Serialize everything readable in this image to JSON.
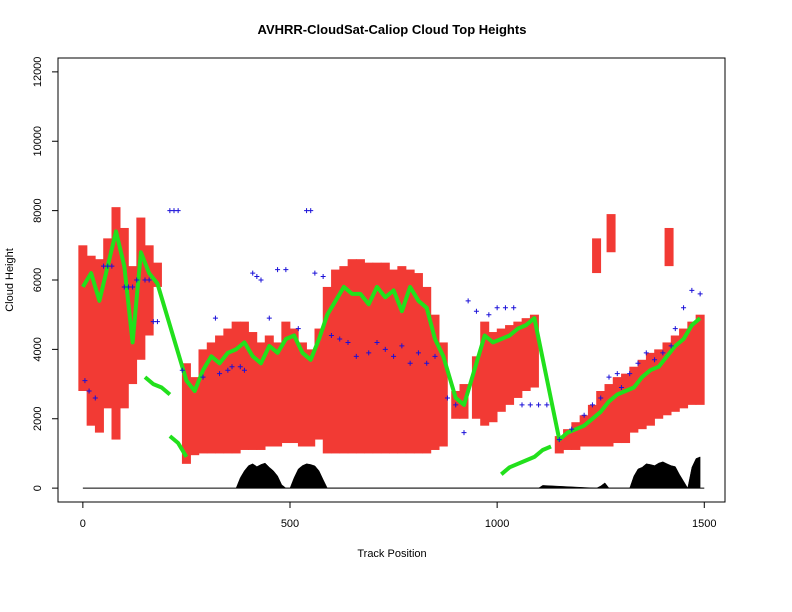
{
  "chart_data": {
    "type": "area",
    "title": "AVHRR-CloudSat-Caliop Cloud Top Heights",
    "xlabel": "Track Position",
    "ylabel": "Cloud Height",
    "xlim": [
      -60,
      1550
    ],
    "ylim": [
      -400,
      12400
    ],
    "x_ticks": [
      0,
      500,
      1000,
      1500
    ],
    "x_tick_labels": [
      "0",
      "500",
      "1000",
      "1500"
    ],
    "y_ticks": [
      0,
      2000,
      4000,
      6000,
      8000,
      10000,
      12000
    ],
    "y_tick_labels": [
      "0",
      "2000",
      "4000",
      "6000",
      "8000",
      "10000",
      "12000"
    ],
    "grid": false,
    "colors": {
      "cloud_layer": "#f23a34",
      "cloud_top": "#22e01c",
      "avhrr": "#1a10d8",
      "terrain": "#000000"
    },
    "series": [
      {
        "type": "vertical-bars",
        "color": "#f23a34",
        "segments": [
          [
            0,
            2800,
            7000
          ],
          [
            20,
            1800,
            6700
          ],
          [
            40,
            1600,
            6600
          ],
          [
            60,
            2300,
            7200
          ],
          [
            80,
            1400,
            8100
          ],
          [
            100,
            2300,
            7500
          ],
          [
            120,
            3000,
            6400
          ],
          [
            140,
            3700,
            7800
          ],
          [
            160,
            4400,
            7000
          ],
          [
            180,
            5800,
            6500
          ],
          [
            250,
            700,
            3600
          ],
          [
            270,
            950,
            3200
          ],
          [
            290,
            1000,
            4000
          ],
          [
            310,
            1000,
            4200
          ],
          [
            330,
            1000,
            4400
          ],
          [
            350,
            1000,
            4600
          ],
          [
            370,
            1000,
            4800
          ],
          [
            390,
            1100,
            4800
          ],
          [
            410,
            1100,
            4500
          ],
          [
            430,
            1100,
            4200
          ],
          [
            450,
            1200,
            4400
          ],
          [
            470,
            1200,
            4200
          ],
          [
            490,
            1300,
            4800
          ],
          [
            510,
            1300,
            4600
          ],
          [
            530,
            1200,
            4200
          ],
          [
            550,
            1200,
            4000
          ],
          [
            570,
            1400,
            4600
          ],
          [
            590,
            1000,
            5800
          ],
          [
            610,
            1000,
            6300
          ],
          [
            630,
            1000,
            6400
          ],
          [
            650,
            1000,
            6600
          ],
          [
            670,
            1000,
            6600
          ],
          [
            690,
            1000,
            6500
          ],
          [
            710,
            1000,
            6500
          ],
          [
            730,
            1000,
            6500
          ],
          [
            750,
            1000,
            6300
          ],
          [
            770,
            1000,
            6400
          ],
          [
            790,
            1000,
            6300
          ],
          [
            810,
            1000,
            6200
          ],
          [
            830,
            1000,
            5800
          ],
          [
            850,
            1100,
            5000
          ],
          [
            870,
            1200,
            4200
          ],
          [
            900,
            2000,
            2800
          ],
          [
            920,
            2000,
            3000
          ],
          [
            950,
            2000,
            3800
          ],
          [
            970,
            1800,
            4800
          ],
          [
            990,
            1900,
            4500
          ],
          [
            1010,
            2200,
            4600
          ],
          [
            1030,
            2400,
            4700
          ],
          [
            1050,
            2600,
            4800
          ],
          [
            1070,
            2800,
            4900
          ],
          [
            1090,
            2900,
            5000
          ],
          [
            1150,
            1000,
            1500
          ],
          [
            1170,
            1100,
            1700
          ],
          [
            1190,
            1100,
            1900
          ],
          [
            1210,
            1200,
            2100
          ],
          [
            1230,
            1200,
            2400
          ],
          [
            1250,
            1200,
            2800
          ],
          [
            1270,
            1200,
            3000
          ],
          [
            1290,
            1300,
            3200
          ],
          [
            1310,
            1300,
            3300
          ],
          [
            1330,
            1600,
            3500
          ],
          [
            1350,
            1700,
            3700
          ],
          [
            1370,
            1800,
            3900
          ],
          [
            1390,
            2000,
            4000
          ],
          [
            1410,
            2100,
            4200
          ],
          [
            1430,
            2200,
            4400
          ],
          [
            1450,
            2300,
            4600
          ],
          [
            1470,
            2400,
            4800
          ],
          [
            1490,
            2400,
            5000
          ],
          [
            1240,
            6200,
            7200
          ],
          [
            1275,
            6800,
            7900
          ],
          [
            1415,
            6400,
            7500
          ]
        ]
      },
      {
        "type": "line",
        "color": "#22e01c",
        "x": [
          0,
          20,
          40,
          60,
          80,
          100,
          120,
          140,
          160,
          180,
          250,
          270,
          290,
          310,
          330,
          350,
          370,
          390,
          410,
          430,
          450,
          470,
          490,
          510,
          530,
          550,
          570,
          590,
          610,
          630,
          650,
          670,
          690,
          710,
          730,
          750,
          770,
          790,
          810,
          830,
          850,
          870,
          900,
          920,
          950,
          970,
          990,
          1010,
          1030,
          1050,
          1070,
          1090,
          1150,
          1170,
          1190,
          1210,
          1230,
          1250,
          1270,
          1290,
          1310,
          1330,
          1350,
          1370,
          1390,
          1410,
          1430,
          1450,
          1470,
          1490
        ],
        "y": [
          5800,
          6200,
          5400,
          6400,
          7400,
          6400,
          4200,
          6800,
          6200,
          5900,
          3100,
          2800,
          3400,
          3800,
          3600,
          3900,
          4000,
          4200,
          3800,
          3600,
          4100,
          3900,
          4300,
          4400,
          3900,
          3700,
          4300,
          5000,
          5400,
          5800,
          5600,
          5600,
          5300,
          5800,
          5500,
          5700,
          5100,
          5800,
          5400,
          5200,
          4300,
          3800,
          2600,
          2400,
          3600,
          4400,
          4200,
          4300,
          4400,
          4600,
          4700,
          4900,
          1400,
          1600,
          1700,
          1800,
          2000,
          2200,
          2500,
          2700,
          2800,
          2900,
          3200,
          3400,
          3500,
          3800,
          4100,
          4300,
          4700,
          4900
        ]
      },
      {
        "type": "line",
        "color": "#22e01c",
        "x": [
          150,
          170,
          190,
          210
        ],
        "y": [
          3200,
          3000,
          2900,
          2700
        ]
      },
      {
        "type": "line",
        "color": "#22e01c",
        "x": [
          210,
          230,
          250
        ],
        "y": [
          1500,
          1300,
          900
        ]
      },
      {
        "type": "line",
        "color": "#22e01c",
        "x": [
          1010,
          1030,
          1050,
          1070,
          1090,
          1110,
          1130
        ],
        "y": [
          400,
          600,
          700,
          800,
          900,
          1100,
          1200
        ]
      },
      {
        "type": "scatter",
        "marker": "+",
        "color": "#1a10d8",
        "x": [
          5,
          15,
          30,
          50,
          60,
          70,
          100,
          110,
          120,
          130,
          150,
          160,
          170,
          180,
          210,
          220,
          230,
          240,
          290,
          320,
          330,
          350,
          360,
          380,
          390,
          410,
          420,
          430,
          450,
          470,
          490,
          520,
          540,
          550,
          560,
          580,
          600,
          620,
          640,
          660,
          690,
          710,
          730,
          750,
          770,
          790,
          810,
          830,
          850,
          880,
          900,
          920,
          930,
          950,
          980,
          1000,
          1020,
          1040,
          1060,
          1080,
          1100,
          1120,
          1150,
          1180,
          1210,
          1230,
          1250,
          1270,
          1290,
          1300,
          1320,
          1340,
          1360,
          1380,
          1400,
          1420,
          1430,
          1450,
          1470,
          1490
        ],
        "y": [
          3100,
          2800,
          2600,
          6400,
          6400,
          6400,
          5800,
          5800,
          5800,
          6000,
          6000,
          6000,
          4800,
          4800,
          8000,
          8000,
          8000,
          3400,
          3200,
          4900,
          3300,
          3400,
          3500,
          3500,
          3400,
          6200,
          6100,
          6000,
          4900,
          6300,
          6300,
          4600,
          8000,
          8000,
          6200,
          6100,
          4400,
          4300,
          4200,
          3800,
          3900,
          4200,
          4000,
          3800,
          4100,
          3600,
          3900,
          3600,
          3800,
          2600,
          2400,
          1600,
          5400,
          5100,
          5000,
          5200,
          5200,
          5200,
          2400,
          2400,
          2400,
          2400,
          1400,
          1700,
          2100,
          2400,
          2600,
          3200,
          3300,
          2900,
          3300,
          3600,
          3900,
          3700,
          3900,
          4100,
          4600,
          5200,
          5700,
          5600
        ]
      }
    ],
    "terrain": {
      "color": "#000000",
      "x": [
        370,
        380,
        390,
        400,
        410,
        420,
        430,
        440,
        450,
        460,
        470,
        480,
        490,
        500,
        510,
        520,
        530,
        540,
        550,
        560,
        570,
        580,
        590,
        1100,
        1110,
        1240,
        1250,
        1260,
        1270,
        1320,
        1330,
        1340,
        1350,
        1360,
        1370,
        1380,
        1390,
        1400,
        1410,
        1420,
        1430,
        1440,
        1450,
        1460,
        1470,
        1480,
        1490
      ],
      "y": [
        0,
        300,
        500,
        650,
        700,
        620,
        680,
        720,
        600,
        500,
        350,
        100,
        0,
        0,
        300,
        550,
        650,
        700,
        680,
        640,
        500,
        250,
        0,
        0,
        80,
        0,
        60,
        150,
        0,
        0,
        350,
        550,
        600,
        700,
        680,
        650,
        720,
        760,
        700,
        650,
        620,
        400,
        200,
        0,
        600,
        850,
        900
      ]
    },
    "baseline": 0
  }
}
